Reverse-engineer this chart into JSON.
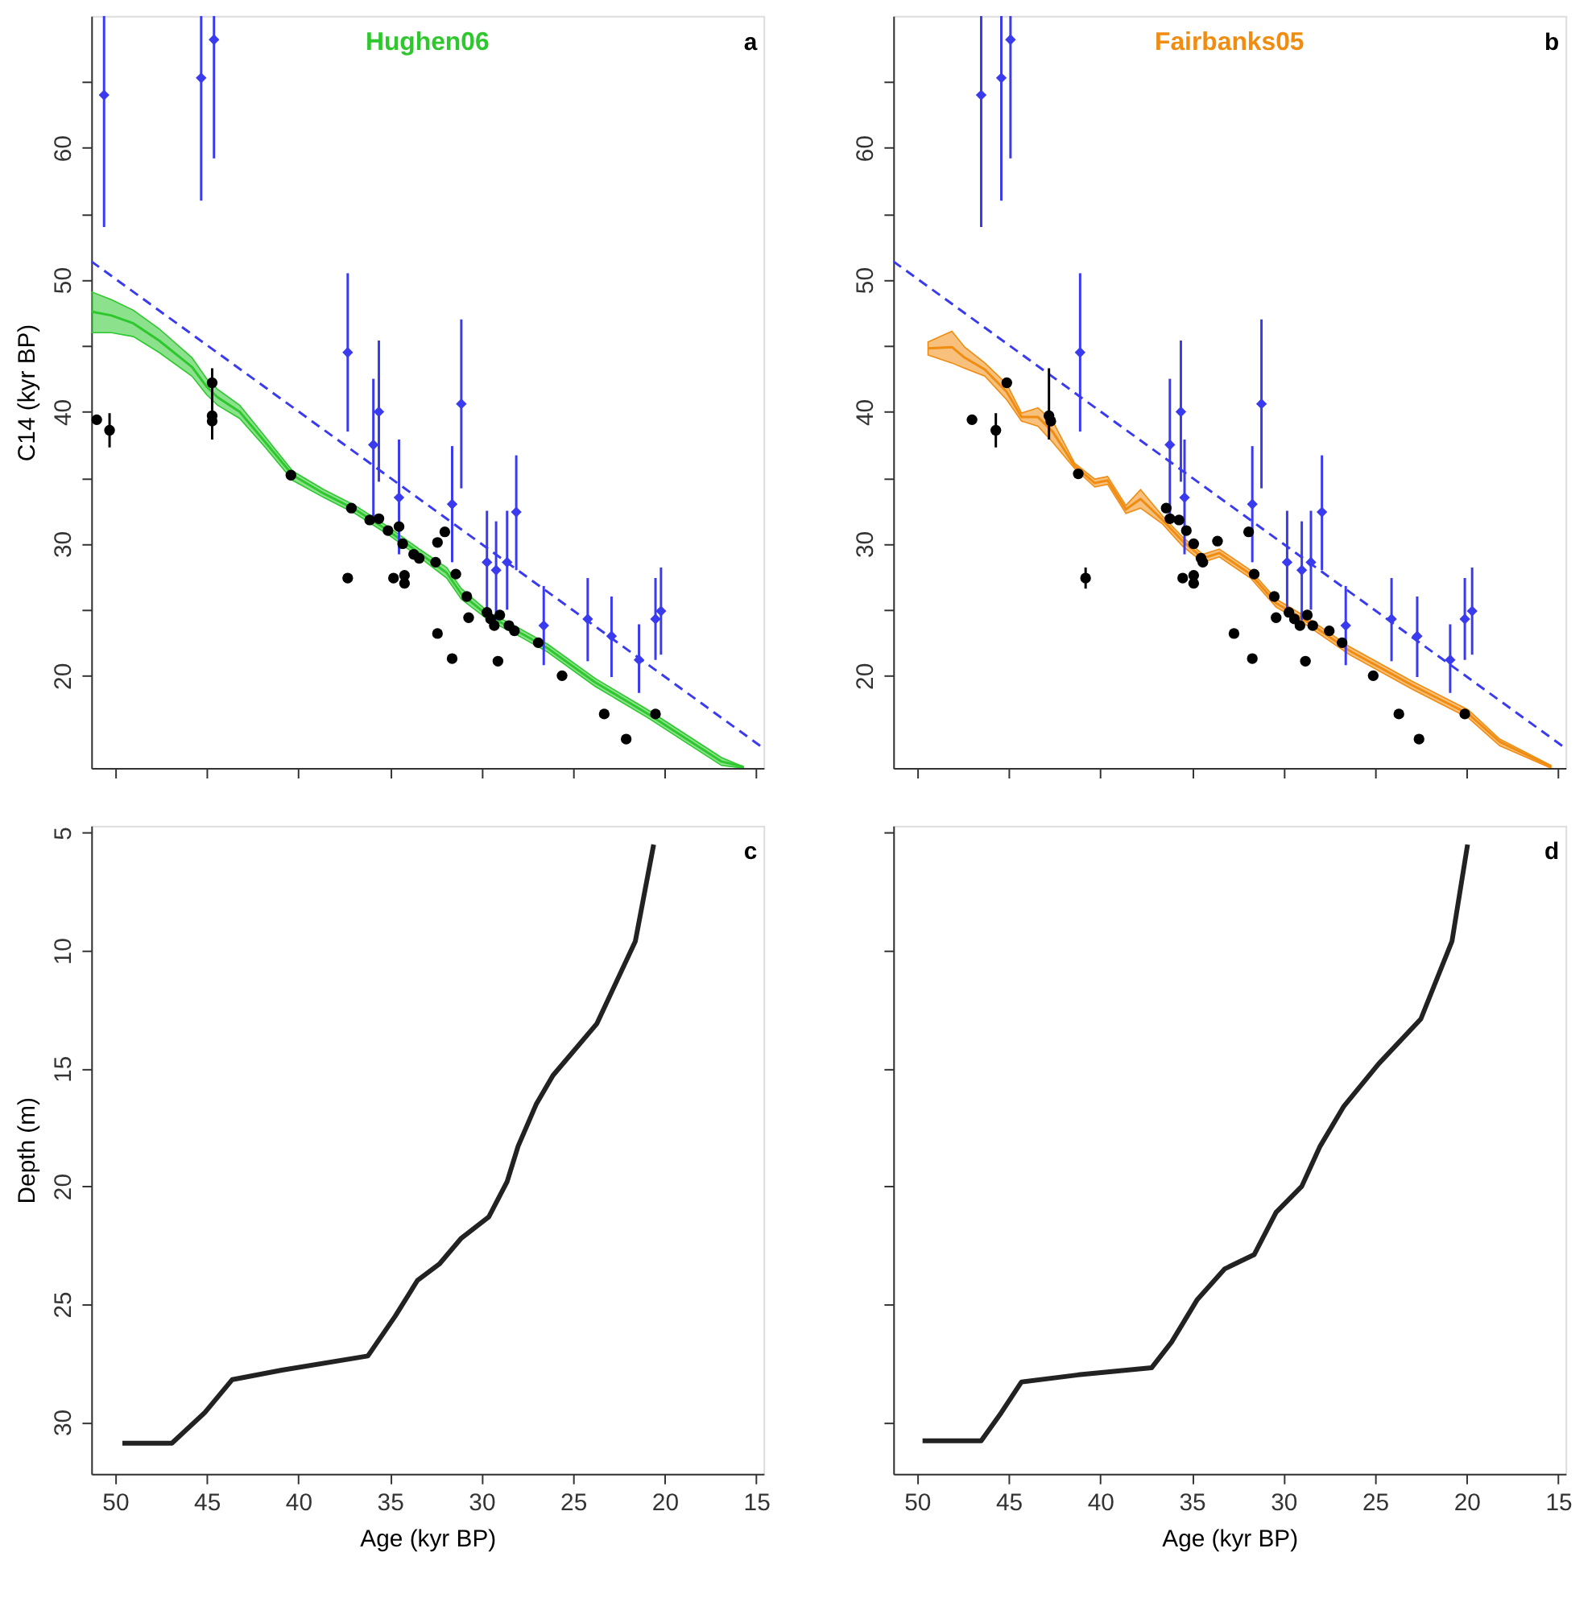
{
  "chart_data": [
    {
      "type": "line",
      "title": "Hughen06",
      "ylabel": "C14 (kyr BP)",
      "annotations": [
        "a"
      ],
      "xlim": [
        51.3,
        14.6
      ],
      "ylim": [
        13,
        70
      ],
      "xticks": [
        50,
        45,
        40,
        35,
        30,
        25,
        20,
        15
      ],
      "yticks": [
        20,
        {
          "value": 25,
          "label": null
        },
        30,
        {
          "value": 35,
          "label": null
        },
        40,
        {
          "value": 45,
          "label": null
        },
        50,
        {
          "value": 55,
          "label": null
        },
        60,
        {
          "value": 65,
          "label": null
        }
      ],
      "tick_labels": "y",
      "grid": false,
      "legend": false,
      "series": [
        {
          "color": "#2ec82e",
          "x": [
            51.3,
            50.2,
            49.0,
            47.6,
            45.8,
            45.0,
            44.4,
            43.2,
            41.8,
            40.3,
            38.6,
            36.9,
            35.1,
            33.4,
            31.9,
            31.1,
            29.6,
            28.2,
            26.4,
            23.8,
            20.9,
            18.9,
            16.9,
            15.7
          ],
          "values": [
            47.6,
            47.3,
            46.7,
            45.4,
            43.4,
            41.9,
            41.1,
            40.0,
            37.7,
            35.2,
            33.8,
            32.6,
            31.0,
            29.3,
            27.8,
            26.2,
            24.5,
            23.5,
            22.1,
            19.5,
            17.1,
            15.3,
            13.5,
            13.1
          ],
          "lower": [
            46.0,
            46.0,
            45.7,
            44.5,
            42.7,
            41.3,
            40.5,
            39.5,
            37.3,
            34.8,
            33.5,
            32.3,
            30.7,
            29.0,
            27.4,
            25.8,
            24.2,
            23.2,
            21.8,
            19.2,
            16.8,
            15.0,
            13.2,
            13.0
          ],
          "upper": [
            49.1,
            48.5,
            47.7,
            46.3,
            44.1,
            42.5,
            41.7,
            40.5,
            38.1,
            35.5,
            34.1,
            32.9,
            31.3,
            29.6,
            28.2,
            26.6,
            24.8,
            23.8,
            22.4,
            19.8,
            17.4,
            15.6,
            13.8,
            13.1
          ]
        },
        {
          "color": "#3a3aee",
          "line_style": "dashed",
          "x": [
            51.3,
            14.6
          ],
          "values": [
            51.4,
            14.5
          ]
        },
        {
          "type": "scatter",
          "color": "#3a3aee",
          "marker": "diamond",
          "x": [
            50.6,
            45.3,
            44.6,
            37.3,
            35.9,
            35.6,
            34.5,
            31.6,
            31.1,
            29.7,
            29.2,
            28.6,
            28.1,
            26.6,
            24.2,
            22.9,
            21.4,
            20.5,
            20.2
          ],
          "values": [
            64.0,
            65.3,
            68.2,
            44.5,
            37.5,
            40.0,
            33.5,
            33.0,
            40.6,
            28.6,
            28.0,
            28.6,
            32.4,
            23.8,
            24.3,
            23.0,
            21.2,
            24.3,
            24.9
          ],
          "errors": [
            [
              54.0,
              70
            ],
            [
              56.0,
              70
            ],
            [
              59.2,
              70
            ],
            [
              38.5,
              50.5
            ],
            [
              32.1,
              42.5
            ],
            [
              34.7,
              45.4
            ],
            [
              29.2,
              37.9
            ],
            [
              28.6,
              37.4
            ],
            [
              34.2,
              47.0
            ],
            [
              24.8,
              32.5
            ],
            [
              24.2,
              31.7
            ],
            [
              25.0,
              32.5
            ],
            [
              28.0,
              36.7
            ],
            [
              20.8,
              26.8
            ],
            [
              21.1,
              27.4
            ],
            [
              19.9,
              26.0
            ],
            [
              18.7,
              23.9
            ],
            [
              21.2,
              27.4
            ],
            [
              21.6,
              28.2
            ]
          ]
        },
        {
          "type": "scatter",
          "color": "#000000",
          "marker": "circle",
          "x": [
            51.0,
            50.3,
            44.7,
            44.7,
            44.7,
            40.4,
            37.3,
            37.1,
            36.1,
            35.6,
            35.1,
            34.8,
            34.5,
            34.3,
            34.2,
            34.2,
            33.7,
            33.4,
            32.5,
            32.4,
            32.4,
            32.0,
            31.6,
            31.4,
            30.8,
            30.7,
            29.7,
            29.5,
            29.3,
            29.1,
            29.0,
            28.5,
            28.2,
            26.9,
            25.6,
            23.3,
            22.1,
            20.5
          ],
          "values": [
            39.4,
            38.6,
            42.2,
            39.7,
            39.3,
            35.2,
            27.4,
            32.7,
            31.8,
            31.9,
            31.0,
            27.4,
            31.3,
            30.0,
            27.6,
            27.0,
            29.2,
            28.9,
            28.6,
            30.1,
            23.2,
            30.9,
            21.3,
            27.7,
            26.0,
            24.4,
            24.8,
            24.3,
            23.8,
            21.1,
            24.6,
            23.8,
            23.4,
            22.5,
            20.0,
            17.1,
            15.2,
            17.1
          ],
          "errors": [
            null,
            [
              37.3,
              39.9
            ],
            null,
            [
              37.9,
              43.3
            ],
            null,
            null,
            null,
            null,
            null,
            null,
            null,
            null,
            null,
            null,
            null,
            null,
            null,
            null,
            null,
            null,
            null,
            null,
            null,
            null,
            null,
            null,
            null,
            null,
            null,
            null,
            null,
            null,
            null,
            null,
            null,
            null,
            null,
            null
          ]
        }
      ]
    },
    {
      "type": "line",
      "title": "Fairbanks05",
      "annotations": [
        "b"
      ],
      "xlim": [
        51.3,
        14.6
      ],
      "ylim": [
        13,
        70
      ],
      "xticks": [
        50,
        45,
        40,
        35,
        30,
        25,
        20,
        15
      ],
      "yticks": [
        20,
        {
          "value": 25,
          "label": null
        },
        30,
        {
          "value": 35,
          "label": null
        },
        40,
        {
          "value": 45,
          "label": null
        },
        50,
        {
          "value": 55,
          "label": null
        },
        60,
        {
          "value": 65,
          "label": null
        }
      ],
      "tick_labels": "y",
      "grid": false,
      "legend": false,
      "series": [
        {
          "color": "#f08c10",
          "x": [
            49.4,
            48.1,
            47.4,
            46.3,
            45.1,
            44.3,
            43.4,
            42.6,
            41.4,
            40.3,
            39.6,
            38.6,
            37.8,
            36.6,
            35.5,
            34.4,
            33.5,
            31.8,
            30.4,
            28.7,
            26.4,
            23.0,
            19.9,
            18.2,
            15.4
          ],
          "values": [
            44.8,
            44.9,
            44.1,
            43.2,
            41.5,
            39.6,
            39.6,
            38.5,
            35.9,
            34.6,
            34.8,
            32.6,
            33.4,
            31.8,
            30.2,
            28.9,
            29.3,
            27.7,
            25.5,
            24.1,
            21.9,
            19.3,
            17.1,
            15.0,
            13.1
          ],
          "lower": [
            44.3,
            43.7,
            43.3,
            42.7,
            40.9,
            39.3,
            38.9,
            37.7,
            35.7,
            34.3,
            34.5,
            32.3,
            32.7,
            31.5,
            29.8,
            28.6,
            29.0,
            27.4,
            25.2,
            23.8,
            21.6,
            19.0,
            16.8,
            14.7,
            13.0
          ],
          "upper": [
            45.3,
            46.1,
            44.9,
            43.7,
            42.1,
            39.9,
            40.3,
            39.3,
            36.1,
            34.9,
            35.1,
            32.9,
            34.1,
            32.1,
            30.5,
            29.2,
            29.6,
            28.0,
            25.8,
            24.4,
            22.2,
            19.6,
            17.4,
            15.2,
            13.2
          ]
        },
        {
          "color": "#3a3aee",
          "line_style": "dashed",
          "x": [
            51.3,
            14.6
          ],
          "values": [
            51.4,
            14.5
          ]
        },
        {
          "type": "scatter",
          "color": "#3a3aee",
          "marker": "diamond",
          "x": [
            46.5,
            45.4,
            44.9,
            41.1,
            36.2,
            35.6,
            35.4,
            31.7,
            31.2,
            29.8,
            29.0,
            28.5,
            27.9,
            26.6,
            24.1,
            22.7,
            20.9,
            20.1,
            19.7
          ],
          "values": [
            64.0,
            65.3,
            68.2,
            44.5,
            37.5,
            40.0,
            33.5,
            33.0,
            40.6,
            28.6,
            28.0,
            28.6,
            32.4,
            23.8,
            24.3,
            23.0,
            21.2,
            24.3,
            24.9
          ],
          "errors": [
            [
              54.0,
              70
            ],
            [
              56.0,
              70
            ],
            [
              59.2,
              70
            ],
            [
              38.5,
              50.5
            ],
            [
              32.1,
              42.5
            ],
            [
              34.7,
              45.4
            ],
            [
              29.2,
              37.9
            ],
            [
              28.6,
              37.4
            ],
            [
              34.2,
              47.0
            ],
            [
              24.8,
              32.5
            ],
            [
              24.2,
              31.7
            ],
            [
              25.0,
              32.5
            ],
            [
              28.0,
              36.7
            ],
            [
              20.8,
              26.8
            ],
            [
              21.1,
              27.4
            ],
            [
              19.9,
              26.0
            ],
            [
              18.7,
              23.9
            ],
            [
              21.2,
              27.4
            ],
            [
              21.6,
              28.2
            ]
          ]
        },
        {
          "type": "scatter",
          "color": "#000000",
          "marker": "circle",
          "x": [
            47.0,
            45.7,
            45.1,
            42.8,
            42.7,
            41.2,
            40.8,
            36.4,
            36.2,
            35.7,
            35.5,
            35.3,
            34.9,
            34.9,
            34.9,
            34.5,
            34.4,
            33.6,
            32.7,
            31.9,
            31.7,
            31.6,
            30.5,
            30.4,
            29.7,
            29.4,
            29.1,
            28.8,
            28.7,
            28.4,
            27.5,
            26.8,
            25.1,
            23.7,
            22.6,
            20.1
          ],
          "values": [
            39.4,
            38.6,
            42.2,
            39.7,
            39.3,
            35.3,
            27.4,
            32.7,
            31.9,
            31.8,
            27.4,
            31.0,
            30.0,
            27.6,
            27.0,
            28.9,
            28.6,
            30.2,
            23.2,
            30.9,
            21.3,
            27.7,
            26.0,
            24.4,
            24.8,
            24.3,
            23.8,
            21.1,
            24.6,
            23.8,
            23.4,
            22.5,
            20.0,
            17.1,
            15.2,
            17.1
          ],
          "errors": [
            null,
            [
              37.3,
              39.9
            ],
            null,
            [
              37.9,
              43.3
            ],
            null,
            null,
            [
              26.6,
              28.2
            ],
            null,
            null,
            null,
            null,
            null,
            null,
            null,
            null,
            null,
            null,
            null,
            null,
            null,
            null,
            null,
            null,
            null,
            null,
            null,
            null,
            null,
            null,
            null,
            null,
            null,
            null,
            null,
            null,
            null
          ]
        }
      ]
    },
    {
      "type": "line",
      "xlabel": "Age (kyr BP)",
      "ylabel": "Depth (m)",
      "annotations": [
        "c"
      ],
      "xlim": [
        51.3,
        14.6
      ],
      "ylim": [
        32.2,
        4.7
      ],
      "xticks": [
        50,
        45,
        40,
        35,
        30,
        25,
        20,
        15
      ],
      "yticks": [
        5,
        10,
        15,
        20,
        25,
        30
      ],
      "grid": false,
      "legend": false,
      "series": [
        {
          "color": "#222222",
          "x": [
            20.6,
            21.6,
            23.7,
            26.1,
            27.0,
            28.0,
            28.6,
            29.6,
            31.1,
            32.3,
            33.5,
            34.7,
            36.2,
            40.9,
            43.6,
            45.1,
            46.9,
            49.6
          ],
          "values": [
            5.5,
            9.6,
            13.1,
            15.3,
            16.5,
            18.3,
            19.8,
            21.3,
            22.2,
            23.3,
            24.0,
            25.5,
            27.2,
            27.8,
            28.2,
            29.6,
            30.9,
            30.9
          ]
        }
      ]
    },
    {
      "type": "line",
      "xlabel": "Age (kyr BP)",
      "annotations": [
        "d"
      ],
      "xlim": [
        51.3,
        14.6
      ],
      "ylim": [
        32.2,
        4.7
      ],
      "xticks": [
        50,
        45,
        40,
        35,
        30,
        25,
        20,
        15
      ],
      "yticks": [
        5,
        10,
        15,
        20,
        25,
        30
      ],
      "tick_labels": "x",
      "grid": false,
      "legend": false,
      "series": [
        {
          "color": "#222222",
          "x": [
            19.95,
            20.8,
            22.5,
            24.8,
            26.7,
            28.0,
            29.0,
            30.4,
            31.6,
            33.2,
            34.7,
            36.1,
            37.2,
            41.2,
            44.3,
            45.4,
            46.5,
            49.7
          ],
          "values": [
            5.5,
            9.6,
            12.9,
            14.8,
            16.6,
            18.3,
            20.0,
            21.1,
            22.9,
            23.5,
            24.8,
            26.6,
            27.7,
            28.0,
            28.3,
            29.6,
            30.8,
            30.8
          ]
        }
      ]
    }
  ]
}
